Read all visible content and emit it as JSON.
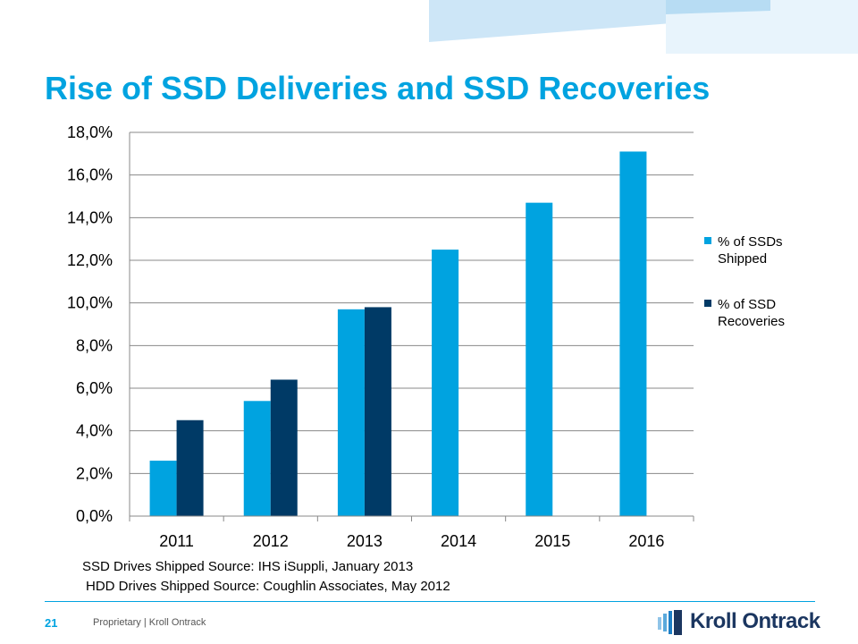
{
  "slide": {
    "title": "Rise of SSD Deliveries and SSD Recoveries",
    "sources": [
      "SSD Drives Shipped Source: IHS iSuppli, January 2013",
      "HDD Drives Shipped Source: Coughlin Associates, May 2012"
    ],
    "page_number": "21",
    "footer": "Proprietary  |  Kroll Ontrack",
    "logo_text": "Kroll Ontrack"
  },
  "colors": {
    "accent": "#00a3e0",
    "series_shipped": "#00a3e0",
    "series_recoveries": "#003a66",
    "grid": "#888888",
    "logo": "#1b3660"
  },
  "chart_data": {
    "type": "bar",
    "categories": [
      "2011",
      "2012",
      "2013",
      "2014",
      "2015",
      "2016"
    ],
    "series": [
      {
        "name": "% of SSDs Shipped",
        "values": [
          2.6,
          5.4,
          9.7,
          12.5,
          14.7,
          17.1
        ],
        "color": "#00a3e0"
      },
      {
        "name": "% of SSD Recoveries",
        "values": [
          4.5,
          6.4,
          9.8,
          null,
          null,
          null
        ],
        "color": "#003a66"
      }
    ],
    "legend_lines": [
      [
        "% of SSDs",
        "Shipped"
      ],
      [
        "% of SSD",
        "Recoveries"
      ]
    ],
    "ylim": [
      0,
      18
    ],
    "yticks": [
      0,
      2,
      4,
      6,
      8,
      10,
      12,
      14,
      16,
      18
    ],
    "ytick_labels": [
      "0,0%",
      "2,0%",
      "4,0%",
      "6,0%",
      "8,0%",
      "10,0%",
      "12,0%",
      "14,0%",
      "16,0%",
      "18,0%"
    ],
    "grid": true,
    "legend_position": "right",
    "title": "",
    "xlabel": "",
    "ylabel": ""
  }
}
